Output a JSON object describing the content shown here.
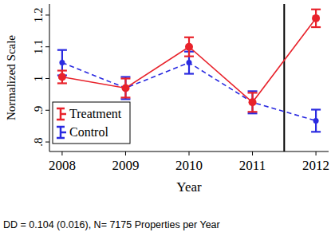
{
  "chart_data": {
    "type": "line",
    "x_label": "Year",
    "y_label": "Normalized Scale",
    "annotations": [
      "DD = 0.104 (0.016), N= 7175 Properties per Year"
    ],
    "x": [
      2008,
      2009,
      2010,
      2011,
      2012
    ],
    "series": [
      {
        "name": "Treatment",
        "color": "#e8222b",
        "line_style": "solid",
        "marker": "circle",
        "values": [
          1.005,
          0.97,
          1.1,
          0.925,
          1.19
        ],
        "errors": [
          0.02,
          0.03,
          0.03,
          0.03,
          0.028
        ]
      },
      {
        "name": "Control",
        "color": "#2a2ae0",
        "line_style": "dashed",
        "marker": "circle",
        "values": [
          1.05,
          0.97,
          1.05,
          0.925,
          0.867
        ],
        "errors": [
          0.04,
          0.035,
          0.035,
          0.035,
          0.035
        ]
      }
    ],
    "vline": 2011.5,
    "xlim": [
      2007.8,
      2012.2
    ],
    "xticks": [
      2008,
      2009,
      2010,
      2011,
      2012
    ],
    "ylim": [
      0.77,
      1.235
    ],
    "yticks": [
      {
        "value": 0.8,
        "label": ".8"
      },
      {
        "value": 0.9,
        "label": ".9"
      },
      1,
      1.1,
      1.2
    ],
    "grid": false,
    "legend": "lower left"
  }
}
